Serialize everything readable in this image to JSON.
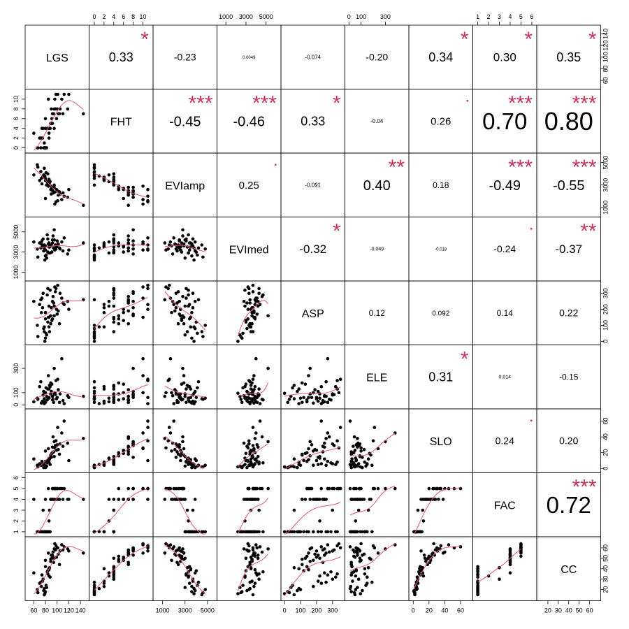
{
  "chart_data": {
    "type": "scatter",
    "variables": [
      "LGS",
      "FHT",
      "EVIamp",
      "EVImed",
      "ASP",
      "ELE",
      "SLO",
      "FAC",
      "CC"
    ],
    "axis_ticks": {
      "LGS": {
        "side": "bottom",
        "values": [
          60,
          80,
          100,
          120,
          140
        ],
        "labels": [
          "60",
          "80",
          "100",
          "120",
          "140"
        ],
        "right_values": [
          60,
          80,
          100,
          120,
          140
        ],
        "right_labels": [
          "60",
          "80",
          "100",
          "120",
          "140"
        ],
        "range": [
          50,
          150
        ]
      },
      "FHT": {
        "side": "top",
        "values": [
          0,
          2,
          4,
          6,
          8,
          10
        ],
        "labels": [
          "0",
          "2",
          "4",
          "6",
          "8",
          "10"
        ],
        "left_values": [
          0,
          2,
          4,
          6,
          8,
          10
        ],
        "left_labels": [
          "0",
          "2",
          "4",
          "6",
          "8",
          "10"
        ],
        "range": [
          -0.5,
          11.5
        ]
      },
      "EVIamp": {
        "side": "bottom",
        "values": [
          1000,
          3000,
          5000
        ],
        "labels": [
          "1000",
          "3000",
          "5000"
        ],
        "right_values": [
          1000,
          3000,
          5000
        ],
        "right_labels": [
          "1000",
          "3000",
          "5000"
        ],
        "range": [
          400,
          5600
        ]
      },
      "EVImed": {
        "side": "top",
        "values": [
          1000,
          3000,
          5000
        ],
        "labels": [
          "1000",
          "3000",
          "5000"
        ],
        "left_values": [
          1000,
          3000,
          5000
        ],
        "left_labels": [
          "1000",
          "3000",
          "5000"
        ],
        "range": [
          400,
          6200
        ]
      },
      "ASP": {
        "side": "bottom",
        "values": [
          0,
          100,
          200,
          300
        ],
        "labels": [
          "0",
          "100",
          "200",
          "300"
        ],
        "right_values": [
          0,
          100,
          200,
          300
        ],
        "right_labels": [
          "0",
          "100",
          "200",
          "300"
        ],
        "range": [
          -5,
          360
        ]
      },
      "ELE": {
        "side": "top",
        "values": [
          0,
          100,
          300
        ],
        "labels": [
          "0",
          "100",
          "300"
        ],
        "left_values": [
          0,
          100,
          300
        ],
        "left_labels": [
          "0",
          "100",
          "300"
        ],
        "range": [
          -10,
          470
        ]
      },
      "SLO": {
        "side": "bottom",
        "values": [
          0,
          20,
          40,
          60
        ],
        "labels": [
          "0",
          "20",
          "40",
          "60"
        ],
        "right_values": [
          0,
          20,
          40,
          60
        ],
        "right_labels": [
          "0",
          "20",
          "40",
          "60"
        ],
        "range": [
          -2,
          72
        ]
      },
      "FAC": {
        "side": "top",
        "values": [
          1,
          2,
          3,
          4,
          5,
          6
        ],
        "labels": [
          "1",
          "2",
          "3",
          "4",
          "5",
          "6"
        ],
        "left_values": [
          1,
          2,
          3,
          4,
          5,
          6
        ],
        "left_labels": [
          "1",
          "2",
          "3",
          "4",
          "5",
          "6"
        ],
        "range": [
          0.8,
          6.2
        ]
      },
      "CC": {
        "side": "bottom",
        "values": [
          20,
          30,
          40,
          50,
          60
        ],
        "labels": [
          "20",
          "30",
          "40",
          "50",
          "60"
        ],
        "right_values": [
          20,
          30,
          40,
          50,
          60
        ],
        "right_labels": [
          "20",
          "30",
          "40",
          "50",
          "60"
        ],
        "range": [
          12,
          68
        ]
      }
    },
    "correlations": [
      {
        "row": 0,
        "col": 1,
        "text": "0.33",
        "size": 18,
        "stars": "*"
      },
      {
        "row": 0,
        "col": 2,
        "text": "-0.23",
        "size": 14,
        "stars": ""
      },
      {
        "row": 0,
        "col": 3,
        "text": "0.0049",
        "size": 6,
        "stars": ""
      },
      {
        "row": 0,
        "col": 4,
        "text": "-0.074",
        "size": 8,
        "stars": ""
      },
      {
        "row": 0,
        "col": 5,
        "text": "-0.20",
        "size": 14,
        "stars": ""
      },
      {
        "row": 0,
        "col": 6,
        "text": "0.34",
        "size": 18,
        "stars": "*"
      },
      {
        "row": 0,
        "col": 7,
        "text": "0.30",
        "size": 17,
        "stars": "*"
      },
      {
        "row": 0,
        "col": 8,
        "text": "0.35",
        "size": 18,
        "stars": "*"
      },
      {
        "row": 1,
        "col": 2,
        "text": "-0.45",
        "size": 20,
        "stars": "***"
      },
      {
        "row": 1,
        "col": 3,
        "text": "-0.46",
        "size": 20,
        "stars": "***"
      },
      {
        "row": 1,
        "col": 4,
        "text": "0.33",
        "size": 18,
        "stars": "*"
      },
      {
        "row": 1,
        "col": 5,
        "text": "-0.04",
        "size": 8,
        "stars": ""
      },
      {
        "row": 1,
        "col": 6,
        "text": "0.26",
        "size": 15,
        "stars": "."
      },
      {
        "row": 1,
        "col": 7,
        "text": "0.70",
        "size": 33,
        "stars": "***"
      },
      {
        "row": 1,
        "col": 8,
        "text": "0.80",
        "size": 36,
        "stars": "***"
      },
      {
        "row": 2,
        "col": 3,
        "text": "0.25",
        "size": 15,
        "stars": "."
      },
      {
        "row": 2,
        "col": 4,
        "text": "-0.091",
        "size": 8,
        "stars": ""
      },
      {
        "row": 2,
        "col": 5,
        "text": "0.40",
        "size": 20,
        "stars": "**"
      },
      {
        "row": 2,
        "col": 6,
        "text": "0.18",
        "size": 12,
        "stars": ""
      },
      {
        "row": 2,
        "col": 7,
        "text": "-0.49",
        "size": 20,
        "stars": "***"
      },
      {
        "row": 2,
        "col": 8,
        "text": "-0.55",
        "size": 20,
        "stars": "***"
      },
      {
        "row": 3,
        "col": 4,
        "text": "-0.32",
        "size": 17,
        "stars": "*"
      },
      {
        "row": 3,
        "col": 5,
        "text": "-0.049",
        "size": 7,
        "stars": ""
      },
      {
        "row": 3,
        "col": 6,
        "text": "-0.018",
        "size": 6,
        "stars": ""
      },
      {
        "row": 3,
        "col": 7,
        "text": "-0.24",
        "size": 14,
        "stars": "."
      },
      {
        "row": 3,
        "col": 8,
        "text": "-0.37",
        "size": 17,
        "stars": "**"
      },
      {
        "row": 4,
        "col": 5,
        "text": "0.12",
        "size": 12,
        "stars": ""
      },
      {
        "row": 4,
        "col": 6,
        "text": "0.092",
        "size": 10,
        "stars": ""
      },
      {
        "row": 4,
        "col": 7,
        "text": "0.14",
        "size": 12,
        "stars": ""
      },
      {
        "row": 4,
        "col": 8,
        "text": "0.22",
        "size": 14,
        "stars": ""
      },
      {
        "row": 5,
        "col": 6,
        "text": "0.31",
        "size": 18,
        "stars": "*"
      },
      {
        "row": 5,
        "col": 7,
        "text": "0.014",
        "size": 7,
        "stars": ""
      },
      {
        "row": 5,
        "col": 8,
        "text": "-0.15",
        "size": 12,
        "stars": ""
      },
      {
        "row": 6,
        "col": 7,
        "text": "0.24",
        "size": 14,
        "stars": "."
      },
      {
        "row": 6,
        "col": 8,
        "text": "0.20",
        "size": 14,
        "stars": ""
      },
      {
        "row": 7,
        "col": 8,
        "text": "0.72",
        "size": 33,
        "stars": "***"
      }
    ],
    "observations": [
      {
        "LGS": 120,
        "FHT": 11,
        "EVIamp": 2600,
        "EVImed": 3200,
        "ASP": 200,
        "ELE": 60,
        "SLO": 10,
        "FAC": 4,
        "CC": 57
      },
      {
        "LGS": 85,
        "FHT": 10,
        "EVIamp": 2900,
        "EVImed": 3800,
        "ASP": 150,
        "ELE": 240,
        "SLO": 25,
        "FAC": 5,
        "CC": 55
      },
      {
        "LGS": 95,
        "FHT": 4,
        "EVIamp": 3000,
        "EVImed": 4200,
        "ASP": 220,
        "ELE": 90,
        "SLO": 15,
        "FAC": 4,
        "CC": 50
      },
      {
        "LGS": 88,
        "FHT": 4,
        "EVIamp": 3300,
        "EVImed": 2900,
        "ASP": 320,
        "ELE": 150,
        "SLO": 5,
        "FAC": 1,
        "CC": 32
      },
      {
        "LGS": 72,
        "FHT": 0,
        "EVIamp": 4200,
        "EVImed": 3400,
        "ASP": 260,
        "ELE": 190,
        "SLO": 4,
        "FAC": 1,
        "CC": 27
      },
      {
        "LGS": 78,
        "FHT": 0,
        "EVIamp": 4500,
        "EVImed": 3700,
        "ASP": 60,
        "ELE": 50,
        "SLO": 2,
        "FAC": 1,
        "CC": 15
      },
      {
        "LGS": 104,
        "FHT": 7,
        "EVIamp": 2400,
        "EVImed": 3400,
        "ASP": 110,
        "ELE": 20,
        "SLO": 18,
        "FAC": 4,
        "CC": 44
      },
      {
        "LGS": 100,
        "FHT": 8,
        "EVIamp": 2500,
        "EVImed": 4100,
        "ASP": 170,
        "ELE": 60,
        "SLO": 30,
        "FAC": 5,
        "CC": 60
      },
      {
        "LGS": 60,
        "FHT": 3,
        "EVIamp": 3900,
        "EVImed": 4000,
        "ASP": 250,
        "ELE": 25,
        "SLO": 12,
        "FAC": 4,
        "CC": 36
      },
      {
        "LGS": 92,
        "FHT": 5,
        "EVIamp": 2700,
        "EVImed": 3900,
        "ASP": 140,
        "ELE": 40,
        "SLO": 20,
        "FAC": 5,
        "CC": 52
      },
      {
        "LGS": 80,
        "FHT": 6,
        "EVIamp": 1800,
        "EVImed": 3600,
        "ASP": 180,
        "ELE": 100,
        "SLO": 22,
        "FAC": 4,
        "CC": 48
      },
      {
        "LGS": 86,
        "FHT": 2,
        "EVIamp": 3500,
        "EVImed": 3500,
        "ASP": 90,
        "ELE": 130,
        "SLO": 8,
        "FAC": 1,
        "CC": 40
      },
      {
        "LGS": 110,
        "FHT": 7,
        "EVIamp": 2300,
        "EVImed": 3100,
        "ASP": 240,
        "ELE": 35,
        "SLO": 28,
        "FAC": 4,
        "CC": 58
      },
      {
        "LGS": 76,
        "FHT": 4,
        "EVIamp": 3700,
        "EVImed": 4300,
        "ASP": 300,
        "ELE": 80,
        "SLO": 6,
        "FAC": 3,
        "CC": 30
      },
      {
        "LGS": 98,
        "FHT": 11,
        "EVIamp": 1500,
        "EVImed": 3300,
        "ASP": 330,
        "ELE": 200,
        "SLO": 35,
        "FAC": 5,
        "CC": 62
      },
      {
        "LGS": 82,
        "FHT": 0,
        "EVIamp": 3000,
        "EVImed": 2400,
        "ASP": 40,
        "ELE": 70,
        "SLO": 3,
        "FAC": 1,
        "CC": 22
      },
      {
        "LGS": 90,
        "FHT": 8,
        "EVIamp": 2200,
        "EVImed": 3700,
        "ASP": 210,
        "ELE": 110,
        "SLO": 14,
        "FAC": 4,
        "CC": 53
      },
      {
        "LGS": 84,
        "FHT": 4,
        "EVIamp": 4000,
        "EVImed": 3000,
        "ASP": 120,
        "ELE": 60,
        "SLO": 10,
        "FAC": 1,
        "CC": 38
      },
      {
        "LGS": 93,
        "FHT": 7,
        "EVIamp": 2800,
        "EVImed": 4600,
        "ASP": 280,
        "ELE": 45,
        "SLO": 40,
        "FAC": 5,
        "CC": 56
      },
      {
        "LGS": 70,
        "FHT": 2,
        "EVIamp": 3400,
        "EVImed": 3900,
        "ASP": 230,
        "ELE": 150,
        "SLO": 6,
        "FAC": 1,
        "CC": 26
      },
      {
        "LGS": 80,
        "FHT": 0,
        "EVIamp": 3600,
        "EVImed": 2600,
        "ASP": 20,
        "ELE": 20,
        "SLO": 1,
        "FAC": 1,
        "CC": 18
      },
      {
        "LGS": 118,
        "FHT": 8,
        "EVIamp": 1900,
        "EVImed": 2800,
        "ASP": 250,
        "ELE": 75,
        "SLO": 32,
        "FAC": 4,
        "CC": 59
      },
      {
        "LGS": 89,
        "FHT": 5,
        "EVIamp": 2600,
        "EVImed": 3600,
        "ASP": 160,
        "ELE": 90,
        "SLO": 16,
        "FAC": 4,
        "CC": 47
      },
      {
        "LGS": 74,
        "FHT": 4,
        "EVIamp": 3100,
        "EVImed": 4100,
        "ASP": 270,
        "ELE": 20,
        "SLO": 9,
        "FAC": 1,
        "CC": 34
      },
      {
        "LGS": 96,
        "FHT": 10,
        "EVIamp": 1300,
        "EVImed": 3200,
        "ASP": 340,
        "ELE": 100,
        "SLO": 26,
        "FAC": 5,
        "CC": 64
      },
      {
        "LGS": 66,
        "FHT": 0,
        "EVIamp": 4800,
        "EVImed": 3300,
        "ASP": 100,
        "ELE": 55,
        "SLO": 4,
        "FAC": 1,
        "CC": 20
      },
      {
        "LGS": 102,
        "FHT": 7,
        "EVIamp": 2100,
        "EVImed": 3800,
        "ASP": 190,
        "ELE": 125,
        "SLO": 24,
        "FAC": 4,
        "CC": 54
      },
      {
        "LGS": 87,
        "FHT": 4,
        "EVIamp": 3200,
        "EVImed": 3500,
        "ASP": 60,
        "ELE": 160,
        "SLO": 12,
        "FAC": 3,
        "CC": 41
      },
      {
        "LGS": 112,
        "FHT": 11,
        "EVIamp": 2000,
        "EVImed": 4400,
        "ASP": 230,
        "ELE": 10,
        "SLO": 60,
        "FAC": 5,
        "CC": 61
      },
      {
        "LGS": 79,
        "FHT": 0,
        "EVIamp": 3800,
        "EVImed": 2200,
        "ASP": 0,
        "ELE": 95,
        "SLO": 2,
        "FAC": 1,
        "CC": 16
      },
      {
        "LGS": 91,
        "FHT": 6,
        "EVIamp": 2700,
        "EVImed": 3000,
        "ASP": 130,
        "ELE": 170,
        "SLO": 19,
        "FAC": 4,
        "CC": 50
      },
      {
        "LGS": 83,
        "FHT": 4,
        "EVIamp": 3300,
        "EVImed": 4700,
        "ASP": 290,
        "ELE": 40,
        "SLO": 7,
        "FAC": 1,
        "CC": 37
      },
      {
        "LGS": 145,
        "FHT": 7,
        "EVIamp": 1200,
        "EVImed": 3900,
        "ASP": 260,
        "ELE": 70,
        "SLO": 38,
        "FAC": 4,
        "CC": 55
      },
      {
        "LGS": 75,
        "FHT": 2,
        "EVIamp": 3700,
        "EVImed": 3600,
        "ASP": 210,
        "ELE": 30,
        "SLO": 5,
        "FAC": 1,
        "CC": 28
      },
      {
        "LGS": 97,
        "FHT": 8,
        "EVIamp": 2400,
        "EVImed": 3700,
        "ASP": 310,
        "ELE": 85,
        "SLO": 29,
        "FAC": 5,
        "CC": 58
      },
      {
        "LGS": 81,
        "FHT": 0,
        "EVIamp": 4100,
        "EVImed": 2700,
        "ASP": 50,
        "ELE": 140,
        "SLO": 3,
        "FAC": 1,
        "CC": 24
      },
      {
        "LGS": 94,
        "FHT": 7,
        "EVIamp": 2300,
        "EVImed": 3400,
        "ASP": 240,
        "ELE": 20,
        "SLO": 21,
        "FAC": 4,
        "CC": 46
      },
      {
        "LGS": 86,
        "FHT": 4,
        "EVIamp": 3500,
        "EVImed": 3900,
        "ASP": 150,
        "ELE": 60,
        "SLO": 11,
        "FAC": 1,
        "CC": 39
      },
      {
        "LGS": 108,
        "FHT": 10,
        "EVIamp": 1700,
        "EVImed": 4000,
        "ASP": 270,
        "ELE": 380,
        "SLO": 45,
        "FAC": 5,
        "CC": 63
      },
      {
        "LGS": 77,
        "FHT": 0,
        "EVIamp": 3900,
        "EVImed": 3100,
        "ASP": 80,
        "ELE": 110,
        "SLO": 1,
        "FAC": 1,
        "CC": 19
      },
      {
        "LGS": 99,
        "FHT": 6,
        "EVIamp": 2600,
        "EVImed": 3500,
        "ASP": 200,
        "ELE": 50,
        "SLO": 23,
        "FAC": 4,
        "CC": 51
      },
      {
        "LGS": 84,
        "FHT": 4,
        "EVIamp": 3100,
        "EVImed": 4300,
        "ASP": 330,
        "ELE": 130,
        "SLO": 8,
        "FAC": 1,
        "CC": 35
      },
      {
        "LGS": 73,
        "FHT": 2,
        "EVIamp": 3600,
        "EVImed": 3800,
        "ASP": 180,
        "ELE": 15,
        "SLO": 4,
        "FAC": 1,
        "CC": 23
      },
      {
        "LGS": 105,
        "FHT": 8,
        "EVIamp": 2200,
        "EVImed": 3300,
        "ASP": 300,
        "ELE": 90,
        "SLO": 31,
        "FAC": 5,
        "CC": 57
      },
      {
        "LGS": 89,
        "FHT": 5,
        "EVIamp": 2900,
        "EVImed": 3600,
        "ASP": 110,
        "ELE": 180,
        "SLO": 17,
        "FAC": 4,
        "CC": 49
      },
      {
        "LGS": 67,
        "FHT": 0,
        "EVIamp": 4600,
        "EVImed": 2500,
        "ASP": 30,
        "ELE": 45,
        "SLO": 2,
        "FAC": 1,
        "CC": 17
      },
      {
        "LGS": 92,
        "FHT": 7,
        "EVIamp": 2500,
        "EVImed": 4200,
        "ASP": 250,
        "ELE": 70,
        "SLO": 27,
        "FAC": 4,
        "CC": 53
      },
      {
        "LGS": 80,
        "FHT": 4,
        "EVIamp": 3400,
        "EVImed": 3200,
        "ASP": 140,
        "ELE": 25,
        "SLO": 9,
        "FAC": 1,
        "CC": 42
      },
      {
        "LGS": 101,
        "FHT": 11,
        "EVIamp": 1600,
        "EVImed": 3700,
        "ASP": 350,
        "ELE": 210,
        "SLO": 52,
        "FAC": 5,
        "CC": 60
      },
      {
        "LGS": 86,
        "FHT": 3,
        "EVIamp": 3300,
        "EVImed": 2900,
        "ASP": 220,
        "ELE": 55,
        "SLO": 13,
        "FAC": 2,
        "CC": 33
      },
      {
        "LGS": 95,
        "FHT": 8,
        "EVIamp": 2800,
        "EVImed": 5200,
        "ASP": 160,
        "ELE": 300,
        "SLO": 34,
        "FAC": 5,
        "CC": 59
      },
      {
        "LGS": 78,
        "FHT": 1,
        "EVIamp": 3800,
        "EVImed": 3400,
        "ASP": 90,
        "ELE": 10,
        "SLO": 5,
        "FAC": 1,
        "CC": 21
      }
    ],
    "colors": {
      "smooth": "#E05573",
      "stars": "#C8365A",
      "points": "#000000",
      "frame": "#000000",
      "text": "#000000"
    }
  }
}
